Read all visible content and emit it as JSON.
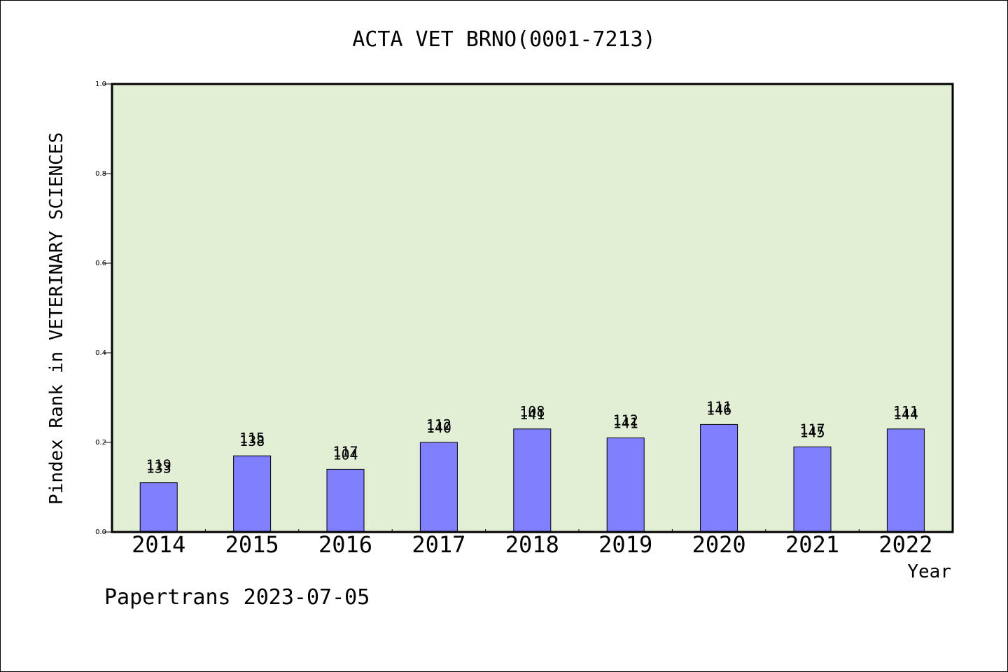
{
  "chart_data": {
    "type": "bar",
    "title": "ACTA VET BRNO(0001-7213)",
    "xlabel": "Year",
    "ylabel": "Pindex Rank in VETERINARY SCIENCES",
    "ylim": [
      0,
      1.0
    ],
    "yticks": [
      "0.0",
      "0.2",
      "0.4",
      "0.6",
      "0.8",
      "1.0"
    ],
    "categories": [
      "2014",
      "2015",
      "2016",
      "2017",
      "2018",
      "2019",
      "2020",
      "2021",
      "2022"
    ],
    "values": [
      0.11,
      0.17,
      0.14,
      0.2,
      0.23,
      0.21,
      0.24,
      0.19,
      0.23
    ],
    "bar_labels": [
      [
        "119",
        "133"
      ],
      [
        "115",
        "138"
      ],
      [
        "117",
        "104"
      ],
      [
        "112",
        "140"
      ],
      [
        "108",
        "141"
      ],
      [
        "112",
        "141"
      ],
      [
        "111",
        "146"
      ],
      [
        "117",
        "145"
      ],
      [
        "111",
        "144"
      ]
    ],
    "grid": false,
    "colors": {
      "plot_background": "#e2efd5",
      "bar_fill": "#8080ff",
      "bar_stroke": "#000000"
    }
  },
  "footer": {
    "source": "Papertrans 2023-07-05"
  }
}
